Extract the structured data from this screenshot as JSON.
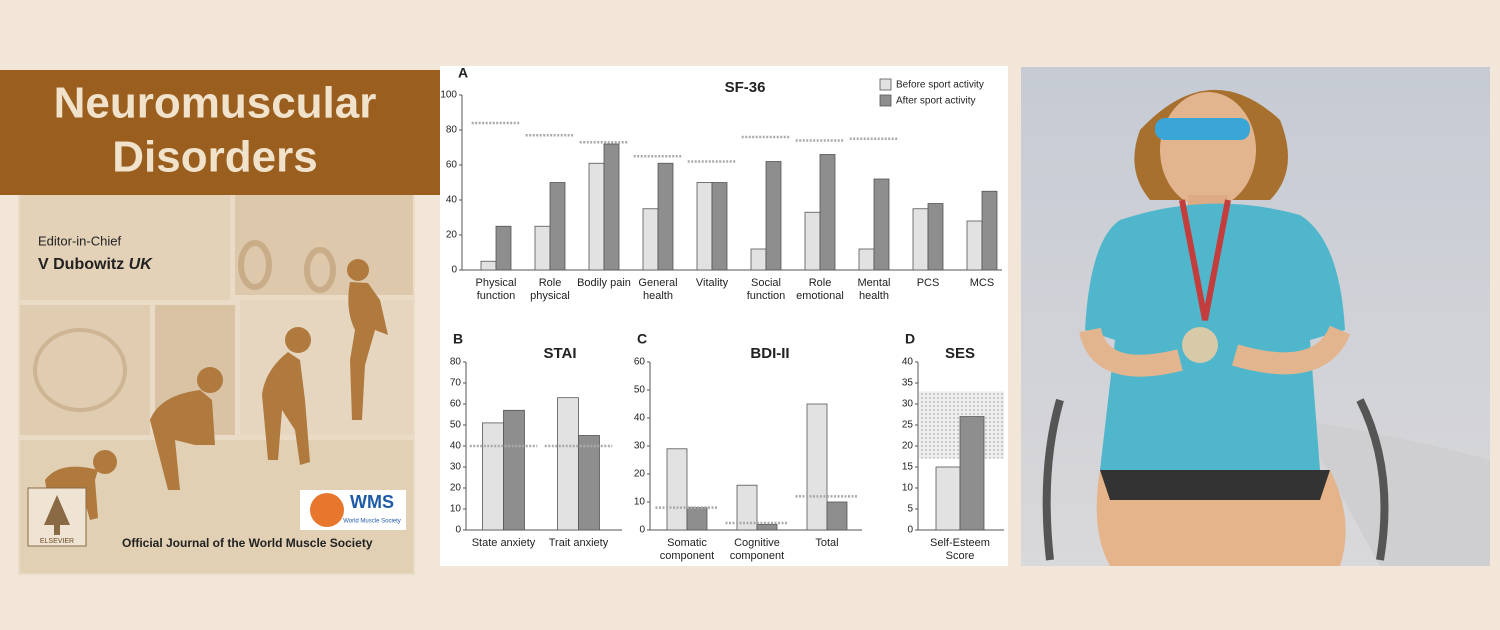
{
  "cover": {
    "title_lines": [
      "Neuromuscular",
      "Disorders"
    ],
    "editor_role": "Editor-in-Chief",
    "editor": "V Dubowitz",
    "editor_country": "UK",
    "footer": "Official Journal of the World Muscle Society",
    "society_logo": "WMS",
    "society_name": "World Muscle Society",
    "publisher": "ELSEVIER"
  },
  "chart_data": [
    {
      "type": "bar",
      "label": "A",
      "title": "SF-36",
      "categories": [
        "Physical function",
        "Role physical",
        "Bodily pain",
        "General health",
        "Vitality",
        "Social function",
        "Role emotional",
        "Mental health",
        "PCS",
        "MCS"
      ],
      "series": [
        {
          "name": "Before sport activity",
          "color": "#e2e2e2",
          "values": [
            5,
            25,
            61,
            35,
            50,
            12,
            33,
            12,
            35,
            28
          ]
        },
        {
          "name": "After sport activity",
          "color": "#8e8e8e",
          "values": [
            25,
            50,
            72,
            61,
            50,
            62,
            66,
            52,
            38,
            45
          ]
        }
      ],
      "reference_values": [
        84,
        77,
        73,
        65,
        62,
        76,
        74,
        75,
        null,
        null
      ],
      "ylim": [
        0,
        100
      ],
      "yticks": [
        0,
        20,
        40,
        60,
        80,
        100
      ],
      "legend": "top-right",
      "grid": false
    },
    {
      "type": "bar",
      "label": "B",
      "title": "STAI",
      "categories": [
        "State anxiety",
        "Trait anxiety"
      ],
      "series": [
        {
          "color": "#e2e2e2",
          "values": [
            51,
            63
          ]
        },
        {
          "color": "#8e8e8e",
          "values": [
            57,
            45
          ]
        }
      ],
      "reference_values": [
        40,
        40
      ],
      "ylim": [
        0,
        80
      ],
      "yticks": [
        0,
        10,
        20,
        30,
        40,
        50,
        60,
        70,
        80
      ],
      "grid": false
    },
    {
      "type": "bar",
      "label": "C",
      "title": "BDI-II",
      "categories": [
        "Somatic component",
        "Cognitive component",
        "Total"
      ],
      "series": [
        {
          "color": "#e2e2e2",
          "values": [
            29,
            16,
            45
          ]
        },
        {
          "color": "#8e8e8e",
          "values": [
            8,
            2,
            10
          ]
        }
      ],
      "reference_values": [
        8,
        2.5,
        12
      ],
      "ylim": [
        0,
        60
      ],
      "yticks": [
        0,
        10,
        20,
        30,
        40,
        50,
        60
      ],
      "grid": false
    },
    {
      "type": "bar",
      "label": "D",
      "title": "SES",
      "categories": [
        "Self-Esteem Score"
      ],
      "series": [
        {
          "color": "#e2e2e2",
          "values": [
            15
          ]
        },
        {
          "color": "#8e8e8e",
          "values": [
            27
          ]
        }
      ],
      "reference_range": [
        17,
        33
      ],
      "ylim": [
        0,
        40
      ],
      "yticks": [
        0,
        5,
        10,
        15,
        20,
        25,
        30,
        35,
        40
      ],
      "grid": false
    }
  ]
}
